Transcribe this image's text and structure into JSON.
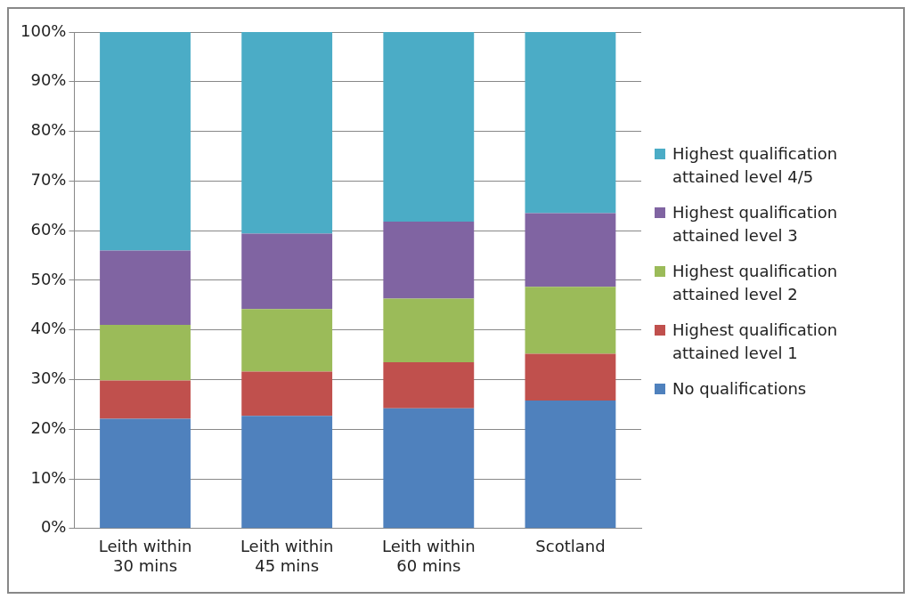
{
  "chart_data": {
    "type": "bar",
    "stacked": true,
    "categories": [
      "Leith within 30 mins",
      "Leith within 45 mins",
      "Leith within 60 mins",
      "Scotland"
    ],
    "series": [
      {
        "name": "No qualifications",
        "color": "#4f81bd",
        "values": [
          22.1,
          22.7,
          24.2,
          25.8
        ]
      },
      {
        "name": "Highest qualification attained level 1",
        "color": "#c0504d",
        "values": [
          7.7,
          8.9,
          9.3,
          9.4
        ]
      },
      {
        "name": "Highest qualification attained level 2",
        "color": "#9bbb59",
        "values": [
          11.2,
          12.6,
          12.8,
          13.5
        ]
      },
      {
        "name": "Highest qualification attained level 3",
        "color": "#8064a2",
        "values": [
          15.0,
          15.2,
          15.5,
          14.8
        ]
      },
      {
        "name": "Highest qualification attained level 4/5",
        "color": "#4bacc6",
        "values": [
          44.0,
          40.6,
          38.2,
          36.5
        ]
      }
    ],
    "ylim": [
      0,
      100
    ],
    "yticks": [
      {
        "value": 0,
        "label": "0%"
      },
      {
        "value": 10,
        "label": "10%"
      },
      {
        "value": 20,
        "label": "20%"
      },
      {
        "value": 30,
        "label": "30%"
      },
      {
        "value": 40,
        "label": "40%"
      },
      {
        "value": 50,
        "label": "50%"
      },
      {
        "value": 60,
        "label": "60%"
      },
      {
        "value": 70,
        "label": "70%"
      },
      {
        "value": 80,
        "label": "80%"
      },
      {
        "value": 90,
        "label": "90%"
      },
      {
        "value": 100,
        "label": "100%"
      }
    ],
    "grid": "y",
    "legend": "right"
  }
}
